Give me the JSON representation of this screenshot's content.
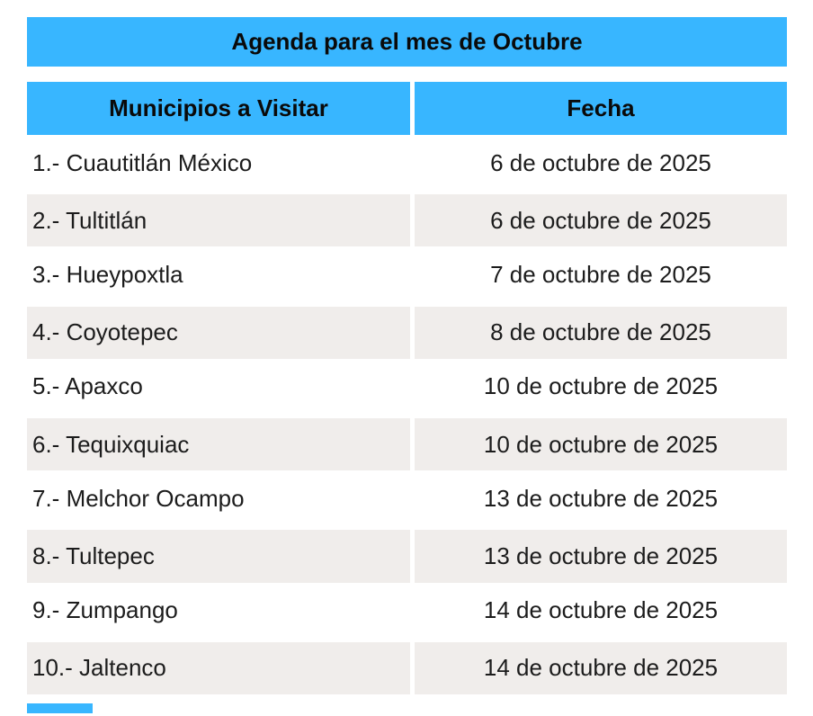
{
  "title": "Agenda para el mes de Octubre",
  "columns": [
    {
      "label": "Municipios a Visitar"
    },
    {
      "label": "Fecha"
    }
  ],
  "rows": [
    {
      "municipio": "1.- Cuautitlán México",
      "fecha": "6 de octubre de 2025"
    },
    {
      "municipio": "2.- Tultitlán",
      "fecha": "6 de octubre de 2025"
    },
    {
      "municipio": "3.- Hueypoxtla",
      "fecha": "7 de octubre de 2025"
    },
    {
      "municipio": "4.- Coyotepec",
      "fecha": "8 de octubre de 2025"
    },
    {
      "municipio": "5.- Apaxco",
      "fecha": "10 de octubre de 2025"
    },
    {
      "municipio": "6.- Tequixquiac",
      "fecha": "10 de octubre de 2025"
    },
    {
      "municipio": "7.- Melchor Ocampo",
      "fecha": "13 de octubre de 2025"
    },
    {
      "municipio": "8.- Tultepec",
      "fecha": "13 de octubre de 2025"
    },
    {
      "municipio": "9.- Zumpango",
      "fecha": "14 de octubre de 2025"
    },
    {
      "municipio": "10.- Jaltenco",
      "fecha": "14 de octubre de 2025"
    }
  ],
  "colors": {
    "accent": "#38b6ff",
    "row_alt_background": "#f0edeb",
    "text": "#1c1c1c"
  }
}
